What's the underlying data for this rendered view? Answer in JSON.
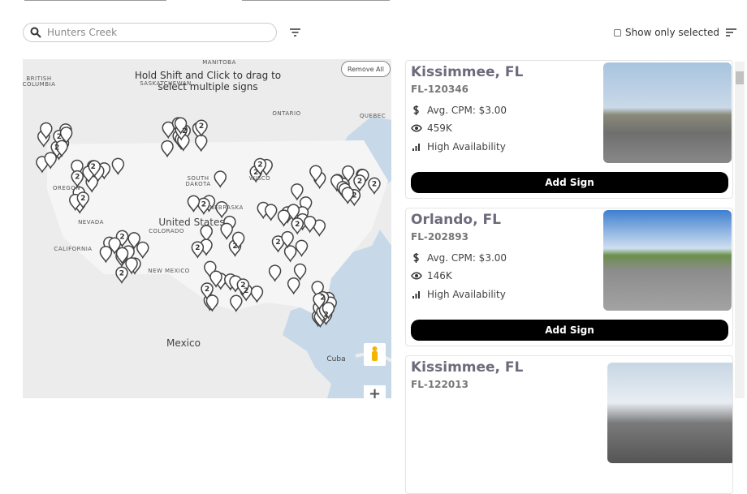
{
  "search": {
    "placeholder": "Hunters Creek"
  },
  "filter": {
    "show_only_selected": "Show only selected"
  },
  "map": {
    "hint": "Hold Shift and Click to drag to select multiple signs",
    "remove_all": "Remove All",
    "zoom_in": "+",
    "labels": [
      "BRITISH",
      "COLUMBIA",
      "MANITOBA",
      "SASKATCHEWAN",
      "ONTARIO",
      "QUEBEC",
      "OREGON",
      "SOUTH",
      "DAKOTA",
      "WISCO",
      "NEBRASKA",
      "NEVADA",
      "United States",
      "COLORADO",
      "CALIFORNIA",
      "NEW MEXICO",
      "Mexico",
      "Cuba"
    ],
    "clusters": [
      "2",
      "2",
      "2",
      "2",
      "2",
      "2",
      "2",
      "2",
      "2",
      "2",
      "2",
      "2",
      "2",
      "2",
      "2",
      "2",
      "2",
      "2",
      "2",
      "2",
      "2",
      "2",
      "2",
      "2"
    ]
  },
  "listings": [
    {
      "city": "Kissimmee, FL",
      "code": "FL-120346",
      "cpm": "Avg. CPM: $3.00",
      "impressions": "459K",
      "availability": "High Availability",
      "action": "Add Sign"
    },
    {
      "city": "Orlando, FL",
      "code": "FL-202893",
      "cpm": "Avg. CPM: $3.00",
      "impressions": "146K",
      "availability": "High Availability",
      "action": "Add Sign"
    },
    {
      "city": "Kissimmee, FL",
      "code": "FL-122013"
    }
  ]
}
